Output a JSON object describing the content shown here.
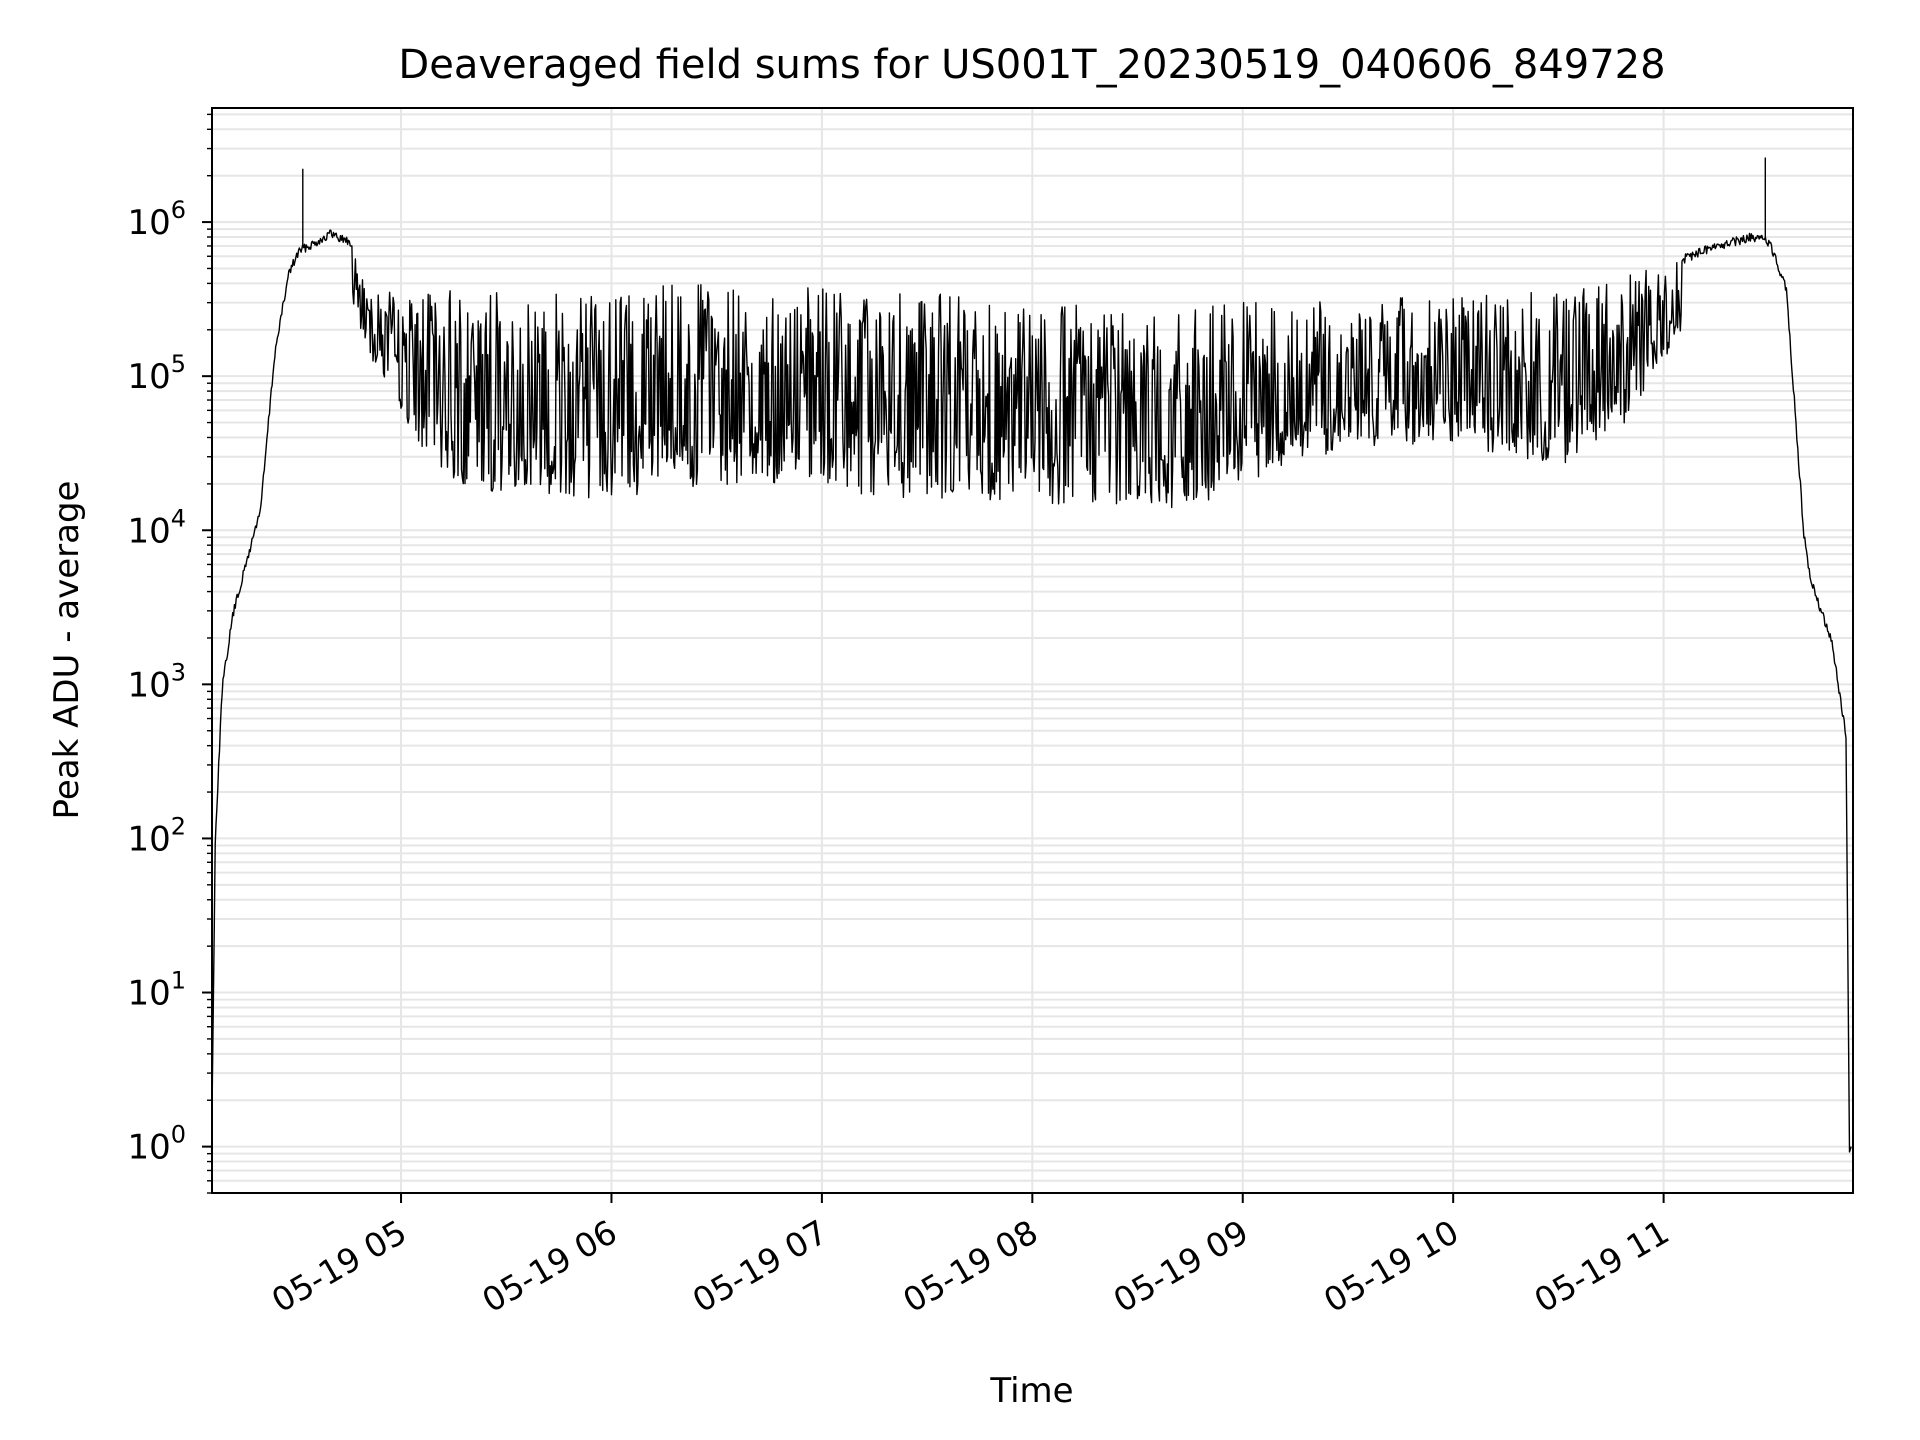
{
  "chart_data": {
    "type": "line",
    "title": "Deaveraged field sums for US001T_20230519_040606_849728",
    "xlabel": "Time",
    "ylabel": "Peak ADU - average",
    "yscale": "log",
    "xlim": [
      "05-19 04:06:06",
      "05-19 11:54"
    ],
    "ylim": [
      0.5,
      5500000
    ],
    "grid": true,
    "legend": "none",
    "line_color": "#000000",
    "grid_color": "#e6e6e6",
    "x_ticks": [
      {
        "time": "05-19 05:00",
        "label": "05-19 05"
      },
      {
        "time": "05-19 06:00",
        "label": "05-19 06"
      },
      {
        "time": "05-19 07:00",
        "label": "05-19 07"
      },
      {
        "time": "05-19 08:00",
        "label": "05-19 08"
      },
      {
        "time": "05-19 09:00",
        "label": "05-19 09"
      },
      {
        "time": "05-19 10:00",
        "label": "05-19 10"
      },
      {
        "time": "05-19 11:00",
        "label": "05-19 11"
      }
    ],
    "y_ticks": [
      {
        "value": 1,
        "base": "10",
        "exp": "0"
      },
      {
        "value": 10,
        "base": "10",
        "exp": "1"
      },
      {
        "value": 100,
        "base": "10",
        "exp": "2"
      },
      {
        "value": 1000,
        "base": "10",
        "exp": "3"
      },
      {
        "value": 10000,
        "base": "10",
        "exp": "4"
      },
      {
        "value": 100000,
        "base": "10",
        "exp": "5"
      },
      {
        "value": 1000000,
        "base": "10",
        "exp": "6"
      }
    ],
    "series": [
      {
        "note_upper_envelope": "approximate maximum of the dense series",
        "upper": [
          [
            "05-19 04:06",
            1
          ],
          [
            "05-19 04:07",
            100
          ],
          [
            "05-19 04:09",
            1000
          ],
          [
            "05-19 04:12",
            3000
          ],
          [
            "05-19 04:20",
            15000
          ],
          [
            "05-19 04:24",
            150000
          ],
          [
            "05-19 04:28",
            500000
          ],
          [
            "05-19 04:31",
            700000
          ],
          [
            "05-19 04:36",
            800000
          ],
          [
            "05-19 04:40",
            900000
          ],
          [
            "05-19 04:45",
            800000
          ],
          [
            "05-19 04:50",
            500000
          ],
          [
            "05-19 05:00",
            300000
          ],
          [
            "05-19 05:15",
            400000
          ],
          [
            "05-19 05:30",
            350000
          ],
          [
            "05-19 06:00",
            380000
          ],
          [
            "05-19 06:30",
            400000
          ],
          [
            "05-19 07:00",
            370000
          ],
          [
            "05-19 07:30",
            350000
          ],
          [
            "05-19 08:00",
            320000
          ],
          [
            "05-19 08:30",
            280000
          ],
          [
            "05-19 09:00",
            300000
          ],
          [
            "05-19 09:30",
            330000
          ],
          [
            "05-19 10:00",
            330000
          ],
          [
            "05-19 10:30",
            380000
          ],
          [
            "05-19 10:50",
            450000
          ],
          [
            "05-19 11:00",
            550000
          ],
          [
            "05-19 11:15",
            750000
          ],
          [
            "05-19 11:25",
            850000
          ],
          [
            "05-19 11:30",
            800000
          ],
          [
            "05-19 11:35",
            400000
          ],
          [
            "05-19 11:40",
            10000
          ],
          [
            "05-19 11:42",
            5000
          ],
          [
            "05-19 11:48",
            2000
          ],
          [
            "05-19 11:52",
            500
          ],
          [
            "05-19 11:53",
            1
          ]
        ],
        "lower": [
          [
            "05-19 04:46",
            250000
          ],
          [
            "05-19 05:00",
            50000
          ],
          [
            "05-19 05:15",
            20000
          ],
          [
            "05-19 05:30",
            17000
          ],
          [
            "05-19 06:00",
            16000
          ],
          [
            "05-19 06:30",
            20000
          ],
          [
            "05-19 07:00",
            17000
          ],
          [
            "05-19 07:30",
            16000
          ],
          [
            "05-19 08:00",
            15000
          ],
          [
            "05-19 08:30",
            14000
          ],
          [
            "05-19 08:50",
            13000
          ],
          [
            "05-19 09:10",
            25000
          ],
          [
            "05-19 09:30",
            33000
          ],
          [
            "05-19 10:00",
            37000
          ],
          [
            "05-19 10:30",
            25000
          ],
          [
            "05-19 10:50",
            50000
          ],
          [
            "05-19 11:05",
            200000
          ]
        ],
        "spikes": [
          {
            "time": "05-19 04:32",
            "value": 2200000
          },
          {
            "time": "05-19 11:29",
            "value": 2600000
          }
        ]
      }
    ]
  }
}
